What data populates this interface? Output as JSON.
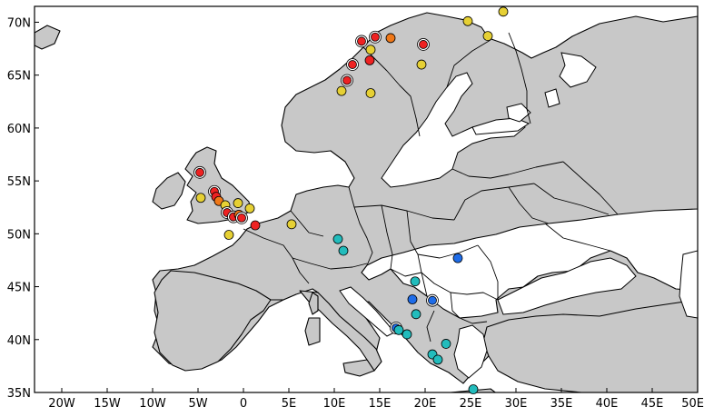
{
  "map": {
    "lon_range": [
      -23,
      50
    ],
    "lat_range": [
      35,
      71.5
    ],
    "x_ticks": [
      {
        "value": -20,
        "label": "20W"
      },
      {
        "value": -15,
        "label": "15W"
      },
      {
        "value": -10,
        "label": "10W"
      },
      {
        "value": -5,
        "label": "5W"
      },
      {
        "value": 0,
        "label": "0"
      },
      {
        "value": 5,
        "label": "5E"
      },
      {
        "value": 10,
        "label": "10E"
      },
      {
        "value": 15,
        "label": "15E"
      },
      {
        "value": 20,
        "label": "20E"
      },
      {
        "value": 25,
        "label": "25E"
      },
      {
        "value": 30,
        "label": "30E"
      },
      {
        "value": 35,
        "label": "35E"
      },
      {
        "value": 40,
        "label": "40E"
      },
      {
        "value": 45,
        "label": "45E"
      },
      {
        "value": 50,
        "label": "50E"
      }
    ],
    "y_ticks": [
      {
        "value": 35,
        "label": "35N"
      },
      {
        "value": 40,
        "label": "40N"
      },
      {
        "value": 45,
        "label": "45N"
      },
      {
        "value": 50,
        "label": "50N"
      },
      {
        "value": 55,
        "label": "55N"
      },
      {
        "value": 60,
        "label": "60N"
      },
      {
        "value": 65,
        "label": "65N"
      },
      {
        "value": 70,
        "label": "70N"
      }
    ],
    "colors": {
      "land": "#c8c8c8",
      "sea": "#ffffff",
      "coast": "#000000",
      "red": "#ee2222",
      "orange": "#f07818",
      "yellow": "#e6d034",
      "cyan": "#22bcbc",
      "blue": "#1e6ce8"
    }
  },
  "points": [
    {
      "lon": -4.8,
      "lat": 55.8,
      "color": "red",
      "ring": true
    },
    {
      "lon": -3.2,
      "lat": 54.0,
      "color": "red",
      "ring": true
    },
    {
      "lon": -3.0,
      "lat": 53.5,
      "color": "red",
      "ring": false
    },
    {
      "lon": -2.7,
      "lat": 53.1,
      "color": "orange",
      "ring": false
    },
    {
      "lon": -4.7,
      "lat": 53.4,
      "color": "yellow",
      "ring": false
    },
    {
      "lon": -2.0,
      "lat": 52.7,
      "color": "yellow",
      "ring": false
    },
    {
      "lon": -0.6,
      "lat": 52.9,
      "color": "yellow",
      "ring": false
    },
    {
      "lon": 0.7,
      "lat": 52.4,
      "color": "yellow",
      "ring": false
    },
    {
      "lon": -1.8,
      "lat": 52.0,
      "color": "red",
      "ring": true
    },
    {
      "lon": -1.1,
      "lat": 51.6,
      "color": "red",
      "ring": true
    },
    {
      "lon": -0.5,
      "lat": 51.8,
      "color": "orange",
      "ring": false
    },
    {
      "lon": -0.2,
      "lat": 51.5,
      "color": "red",
      "ring": true
    },
    {
      "lon": -1.6,
      "lat": 49.9,
      "color": "yellow",
      "ring": false
    },
    {
      "lon": 1.3,
      "lat": 50.8,
      "color": "red",
      "ring": false
    },
    {
      "lon": 5.3,
      "lat": 50.9,
      "color": "yellow",
      "ring": false
    },
    {
      "lon": 10.4,
      "lat": 49.5,
      "color": "cyan",
      "ring": false
    },
    {
      "lon": 11.0,
      "lat": 48.4,
      "color": "cyan",
      "ring": false
    },
    {
      "lon": 23.6,
      "lat": 47.7,
      "color": "blue",
      "ring": false
    },
    {
      "lon": 18.9,
      "lat": 45.5,
      "color": "cyan",
      "ring": false
    },
    {
      "lon": 18.6,
      "lat": 43.8,
      "color": "blue",
      "ring": false
    },
    {
      "lon": 20.8,
      "lat": 43.7,
      "color": "blue",
      "ring": true
    },
    {
      "lon": 19.0,
      "lat": 42.4,
      "color": "cyan",
      "ring": false
    },
    {
      "lon": 16.8,
      "lat": 41.1,
      "color": "blue",
      "ring": true
    },
    {
      "lon": 17.1,
      "lat": 40.9,
      "color": "cyan",
      "ring": false
    },
    {
      "lon": 18.0,
      "lat": 40.5,
      "color": "cyan",
      "ring": false
    },
    {
      "lon": 22.3,
      "lat": 39.6,
      "color": "cyan",
      "ring": false
    },
    {
      "lon": 20.8,
      "lat": 38.6,
      "color": "cyan",
      "ring": false
    },
    {
      "lon": 21.4,
      "lat": 38.1,
      "color": "cyan",
      "ring": false
    },
    {
      "lon": 25.3,
      "lat": 35.3,
      "color": "cyan",
      "ring": false
    },
    {
      "lon": 10.8,
      "lat": 63.5,
      "color": "yellow",
      "ring": false
    },
    {
      "lon": 11.4,
      "lat": 64.5,
      "color": "red",
      "ring": true
    },
    {
      "lon": 12.0,
      "lat": 66.0,
      "color": "red",
      "ring": true
    },
    {
      "lon": 13.9,
      "lat": 66.4,
      "color": "red",
      "ring": false
    },
    {
      "lon": 14.0,
      "lat": 63.3,
      "color": "yellow",
      "ring": false
    },
    {
      "lon": 14.0,
      "lat": 67.4,
      "color": "yellow",
      "ring": false
    },
    {
      "lon": 13.0,
      "lat": 68.2,
      "color": "red",
      "ring": true
    },
    {
      "lon": 14.5,
      "lat": 68.6,
      "color": "red",
      "ring": true
    },
    {
      "lon": 16.2,
      "lat": 68.5,
      "color": "orange",
      "ring": false
    },
    {
      "lon": 19.8,
      "lat": 67.9,
      "color": "red",
      "ring": true
    },
    {
      "lon": 19.6,
      "lat": 66.0,
      "color": "yellow",
      "ring": false
    },
    {
      "lon": 24.7,
      "lat": 70.1,
      "color": "yellow",
      "ring": false
    },
    {
      "lon": 26.9,
      "lat": 68.7,
      "color": "yellow",
      "ring": false
    },
    {
      "lon": 28.6,
      "lat": 71.0,
      "color": "yellow",
      "ring": false
    }
  ]
}
